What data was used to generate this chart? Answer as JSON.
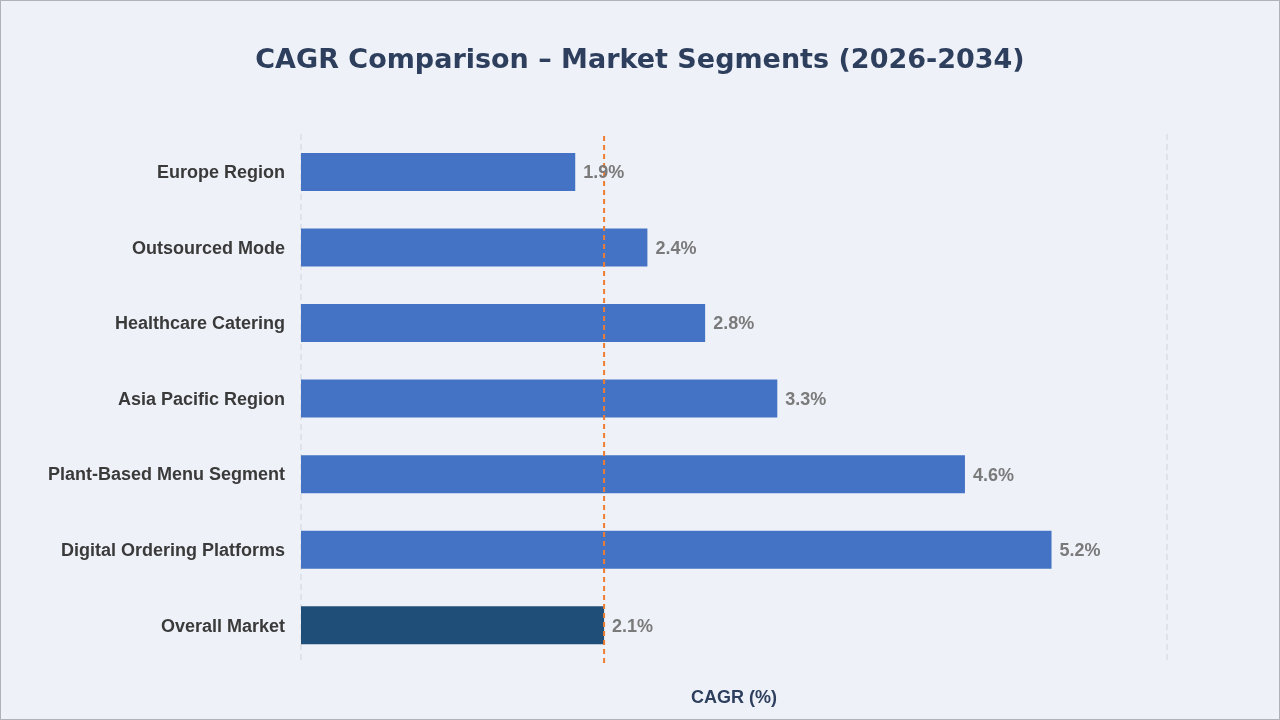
{
  "chart_data": {
    "type": "bar",
    "orientation": "horizontal",
    "title": "CAGR Comparison – Market Segments (2026-2034)",
    "xlabel": "CAGR (%)",
    "categories": [
      "Europe Region",
      "Outsourced Mode",
      "Healthcare Catering",
      "Asia Pacific Region",
      "Plant-Based Menu Segment",
      "Digital Ordering Platforms",
      "Overall Market"
    ],
    "values": [
      1.9,
      2.4,
      2.8,
      3.3,
      4.6,
      5.2,
      2.1
    ],
    "colors": [
      "#4472c4",
      "#4472c4",
      "#4472c4",
      "#4472c4",
      "#4472c4",
      "#4472c4",
      "#1f4e79"
    ],
    "value_labels": [
      "1.9%",
      "2.4%",
      "2.8%",
      "3.3%",
      "4.6%",
      "5.2%",
      "2.1%"
    ],
    "xlim": [
      0,
      6
    ],
    "grid": "x",
    "legend": false,
    "tick_labels": "y",
    "ref_lines": [
      {
        "axis": "x",
        "value": 2.1,
        "color": "#ed7d31",
        "line_style": "dashed"
      }
    ]
  }
}
